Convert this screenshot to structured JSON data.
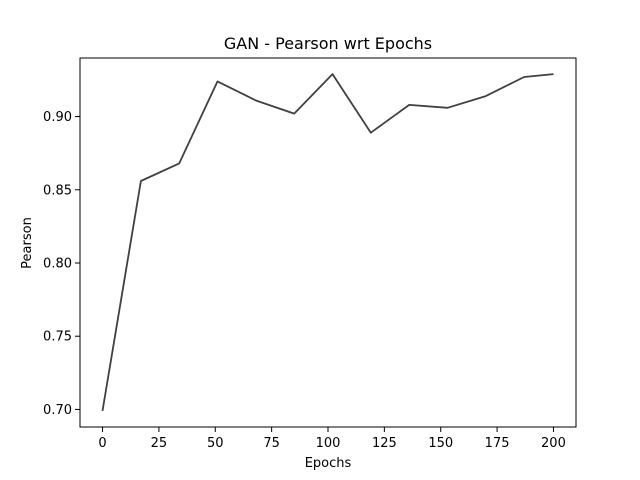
{
  "chart_data": {
    "type": "line",
    "title": "GAN - Pearson wrt Epochs",
    "xlabel": "Epochs",
    "ylabel": "Pearson",
    "xlim": [
      -10,
      210
    ],
    "ylim": [
      0.688,
      0.94
    ],
    "x_ticks": [
      0,
      25,
      50,
      75,
      100,
      125,
      150,
      175,
      200
    ],
    "y_ticks": [
      0.7,
      0.75,
      0.8,
      0.85,
      0.9
    ],
    "x_tick_labels": [
      "0",
      "25",
      "50",
      "75",
      "100",
      "125",
      "150",
      "175",
      "200"
    ],
    "y_tick_labels": [
      "0.70",
      "0.75",
      "0.80",
      "0.85",
      "0.90"
    ],
    "grid": false,
    "series": [
      {
        "color": "#404040",
        "x": [
          0,
          17,
          34,
          51,
          68,
          85,
          102,
          119,
          136,
          153,
          170,
          187,
          200
        ],
        "y": [
          0.699,
          0.856,
          0.868,
          0.924,
          0.911,
          0.902,
          0.929,
          0.889,
          0.908,
          0.906,
          0.914,
          0.927,
          0.929
        ]
      }
    ]
  }
}
